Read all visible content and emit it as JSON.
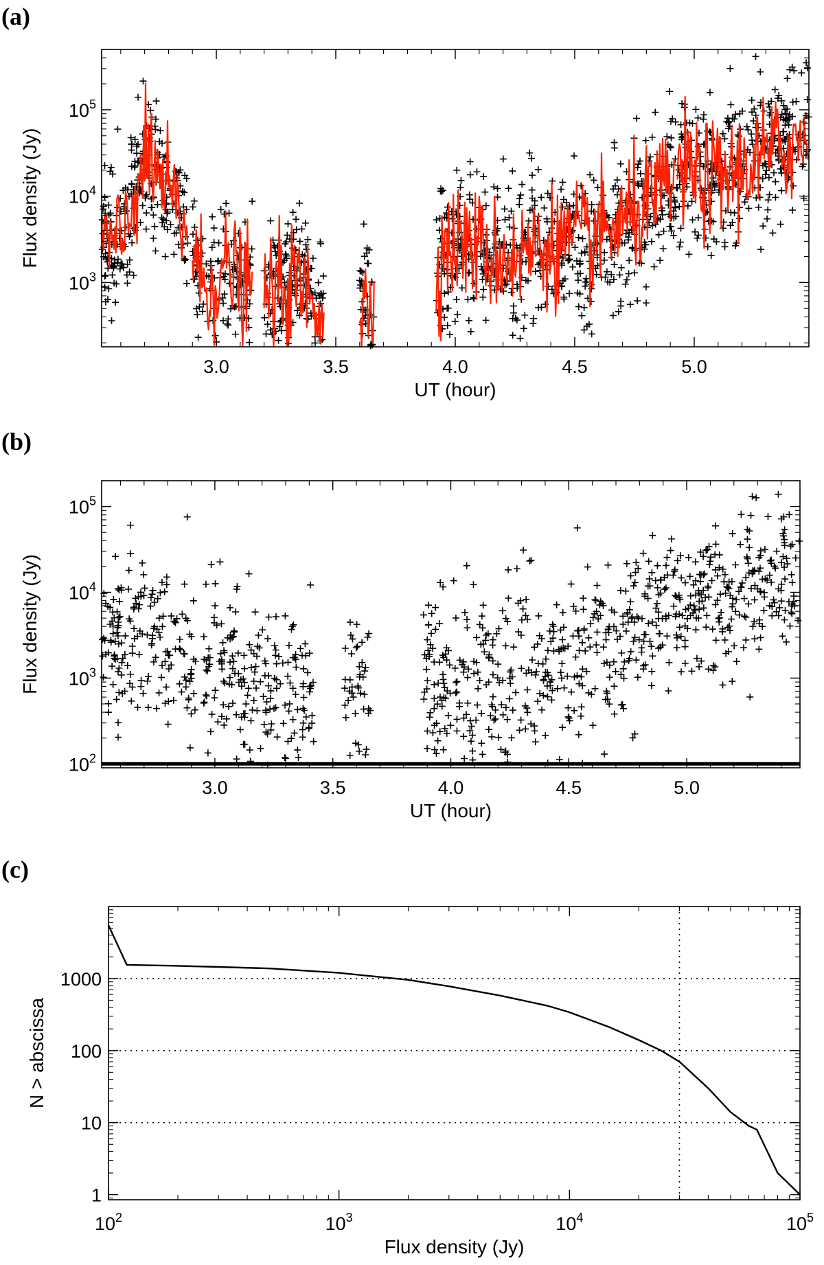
{
  "figure_labels": {
    "a": "(a)",
    "b": "(b)",
    "c": "(c)"
  },
  "colors": {
    "points": "#000000",
    "smoothed_line": "#ff2200",
    "axes": "#000000",
    "grid": "#000000"
  },
  "chart_data": [
    {
      "id": "a",
      "type": "scatter",
      "title": "",
      "xlabel": "UT (hour)",
      "ylabel": "Flux density (Jy)",
      "xlim": [
        2.52,
        5.48
      ],
      "ylim": [
        180,
        500000
      ],
      "yscale": "log",
      "xticks": [
        3.0,
        3.5,
        4.0,
        4.5,
        5.0
      ],
      "xtick_labels": [
        "3.0",
        "3.5",
        "4.0",
        "4.5",
        "5.0"
      ],
      "yticks": [
        1000,
        10000,
        100000
      ],
      "ytick_labels": [
        {
          "base": "10",
          "exp": "3"
        },
        {
          "base": "10",
          "exp": "4"
        },
        {
          "base": "10",
          "exp": "5"
        }
      ],
      "series": [
        {
          "name": "Data points",
          "style": "plus",
          "color": "#000000",
          "segments": [
            [
              2.52,
              2.88
            ],
            [
              2.9,
              3.15
            ],
            [
              3.2,
              3.45
            ],
            [
              3.6,
              3.66
            ],
            [
              3.92,
              5.48
            ]
          ]
        },
        {
          "name": "Smoothed",
          "style": "line",
          "color": "#ff2200",
          "segments": [
            [
              2.52,
              2.88
            ],
            [
              2.9,
              3.15
            ],
            [
              3.2,
              3.45
            ],
            [
              3.6,
              3.66
            ],
            [
              3.92,
              4.92
            ],
            [
              4.93,
              5.48
            ]
          ]
        }
      ],
      "trend": [
        [
          2.52,
          3000
        ],
        [
          2.6,
          2500
        ],
        [
          2.67,
          15000
        ],
        [
          2.72,
          25000
        ],
        [
          2.8,
          10000
        ],
        [
          2.88,
          4000
        ],
        [
          2.95,
          800
        ],
        [
          3.05,
          1500
        ],
        [
          3.15,
          700
        ],
        [
          3.25,
          800
        ],
        [
          3.35,
          900
        ],
        [
          3.45,
          500
        ],
        [
          3.55,
          300
        ],
        [
          3.65,
          600
        ],
        [
          3.85,
          400
        ],
        [
          3.95,
          2500
        ],
        [
          4.05,
          3000
        ],
        [
          4.15,
          2000
        ],
        [
          4.25,
          2000
        ],
        [
          4.35,
          2500
        ],
        [
          4.45,
          3000
        ],
        [
          4.55,
          3000
        ],
        [
          4.65,
          4000
        ],
        [
          4.75,
          6000
        ],
        [
          4.85,
          10000
        ],
        [
          4.95,
          20000
        ],
        [
          5.05,
          15000
        ],
        [
          5.15,
          18000
        ],
        [
          5.25,
          25000
        ],
        [
          5.35,
          35000
        ],
        [
          5.48,
          45000
        ]
      ]
    },
    {
      "id": "b",
      "type": "scatter",
      "title": "",
      "xlabel": "UT (hour)",
      "ylabel": "Flux density (Jy)",
      "xlim": [
        2.52,
        5.48
      ],
      "ylim": [
        90,
        200000
      ],
      "yscale": "log",
      "xticks": [
        3.0,
        3.5,
        4.0,
        4.5,
        5.0
      ],
      "xtick_labels": [
        "3.0",
        "3.5",
        "4.0",
        "4.5",
        "5.0"
      ],
      "yticks": [
        100,
        1000,
        10000,
        100000
      ],
      "ytick_labels": [
        {
          "base": "10",
          "exp": "2"
        },
        {
          "base": "10",
          "exp": "3"
        },
        {
          "base": "10",
          "exp": "4"
        },
        {
          "base": "10",
          "exp": "5"
        }
      ],
      "series": [
        {
          "name": "Data points",
          "style": "plus",
          "color": "#000000",
          "segments": [
            [
              2.52,
              2.92
            ],
            [
              2.95,
              3.42
            ],
            [
              3.55,
              3.66
            ],
            [
              3.88,
              5.48
            ]
          ]
        }
      ],
      "trend": [
        [
          2.52,
          2500
        ],
        [
          2.6,
          2500
        ],
        [
          2.7,
          5000
        ],
        [
          2.8,
          3000
        ],
        [
          2.9,
          1500
        ],
        [
          3.0,
          1500
        ],
        [
          3.1,
          1000
        ],
        [
          3.2,
          700
        ],
        [
          3.35,
          800
        ],
        [
          3.45,
          600
        ],
        [
          3.6,
          500
        ],
        [
          3.75,
          400
        ],
        [
          3.9,
          1200
        ],
        [
          4.0,
          1000
        ],
        [
          4.1,
          800
        ],
        [
          4.2,
          700
        ],
        [
          4.3,
          1200
        ],
        [
          4.4,
          1500
        ],
        [
          4.5,
          2000
        ],
        [
          4.6,
          2500
        ],
        [
          4.7,
          3000
        ],
        [
          4.8,
          4000
        ],
        [
          4.9,
          6000
        ],
        [
          5.0,
          8000
        ],
        [
          5.1,
          10000
        ],
        [
          5.2,
          10000
        ],
        [
          5.3,
          12000
        ],
        [
          5.4,
          15000
        ],
        [
          5.48,
          15000
        ]
      ],
      "baseline_value": 100
    },
    {
      "id": "c",
      "type": "line",
      "title": "",
      "xlabel": "Flux density (Jy)",
      "ylabel": "N > abscissa",
      "xlim": [
        100,
        100000
      ],
      "ylim": [
        0.85,
        10000
      ],
      "xscale": "log",
      "yscale": "log",
      "xticks": [
        100,
        1000,
        10000,
        100000
      ],
      "xtick_labels": [
        {
          "base": "10",
          "exp": "2"
        },
        {
          "base": "10",
          "exp": "3"
        },
        {
          "base": "10",
          "exp": "4"
        },
        {
          "base": "10",
          "exp": "5"
        }
      ],
      "yticks": [
        1,
        10,
        100,
        1000
      ],
      "ytick_labels": [
        "1",
        "10",
        "100",
        "1000"
      ],
      "grid_y": [
        10,
        100,
        1000
      ],
      "grid_x": [
        30000
      ],
      "series": [
        {
          "name": "Cumulative count",
          "color": "#000000",
          "x": [
            100,
            120,
            200,
            300,
            500,
            1000,
            2000,
            3000,
            5000,
            8000,
            10000,
            15000,
            20000,
            25000,
            30000,
            40000,
            50000,
            60000,
            65000,
            80000,
            100000
          ],
          "y": [
            5500,
            1550,
            1500,
            1450,
            1380,
            1200,
            960,
            780,
            580,
            420,
            340,
            210,
            140,
            100,
            70,
            30,
            14,
            9,
            8,
            2,
            1
          ]
        }
      ]
    }
  ]
}
